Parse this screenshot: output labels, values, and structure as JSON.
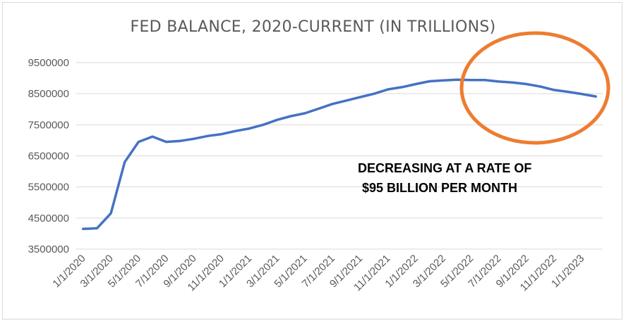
{
  "chart_data": {
    "type": "line",
    "title": "FED BALANCE, 2020-CURRENT (IN TRILLIONS)",
    "xlabel": "",
    "ylabel": "",
    "ylim": [
      3500000,
      9500000
    ],
    "yticks": [
      "9500000",
      "8500000",
      "7500000",
      "6500000",
      "5500000",
      "4500000",
      "3500000"
    ],
    "xtick_labels": [
      "1/1/2020",
      "3/1/2020",
      "5/1/2020",
      "7/1/2020",
      "9/1/2020",
      "11/1/2020",
      "1/1/2021",
      "3/1/2021",
      "5/1/2021",
      "7/1/2021",
      "9/1/2021",
      "11/1/2021",
      "1/1/2022",
      "3/1/2022",
      "5/1/2022",
      "7/1/2022",
      "9/1/2022",
      "11/1/2022",
      "1/1/2023"
    ],
    "grid": true,
    "legend": "none",
    "line_color": "#4472C4",
    "series": [
      {
        "x": [
          "1/1/2020",
          "2/1/2020",
          "3/1/2020",
          "4/1/2020",
          "5/1/2020",
          "6/1/2020",
          "7/1/2020",
          "8/1/2020",
          "9/1/2020",
          "10/1/2020",
          "11/1/2020",
          "12/1/2020",
          "1/1/2021",
          "2/1/2021",
          "3/1/2021",
          "4/1/2021",
          "5/1/2021",
          "6/1/2021",
          "7/1/2021",
          "8/1/2021",
          "9/1/2021",
          "10/1/2021",
          "11/1/2021",
          "12/1/2021",
          "1/1/2022",
          "2/1/2022",
          "3/1/2022",
          "4/1/2022",
          "5/1/2022",
          "6/1/2022",
          "7/1/2022",
          "8/1/2022",
          "9/1/2022",
          "10/1/2022",
          "11/1/2022",
          "12/1/2022",
          "1/1/2023",
          "2/1/2023"
        ],
        "values": [
          4150000,
          4170000,
          4650000,
          6300000,
          6950000,
          7120000,
          6950000,
          6980000,
          7050000,
          7140000,
          7200000,
          7300000,
          7380000,
          7500000,
          7660000,
          7780000,
          7870000,
          8020000,
          8170000,
          8280000,
          8390000,
          8500000,
          8640000,
          8710000,
          8810000,
          8900000,
          8930000,
          8950000,
          8940000,
          8940000,
          8890000,
          8860000,
          8810000,
          8730000,
          8620000,
          8560000,
          8490000,
          8410000
        ]
      }
    ],
    "annotation": {
      "line1": "DECREASING AT A RATE OF",
      "line2": "$95 BILLION PER MONTH"
    },
    "highlight_color": "#ED7D31"
  }
}
